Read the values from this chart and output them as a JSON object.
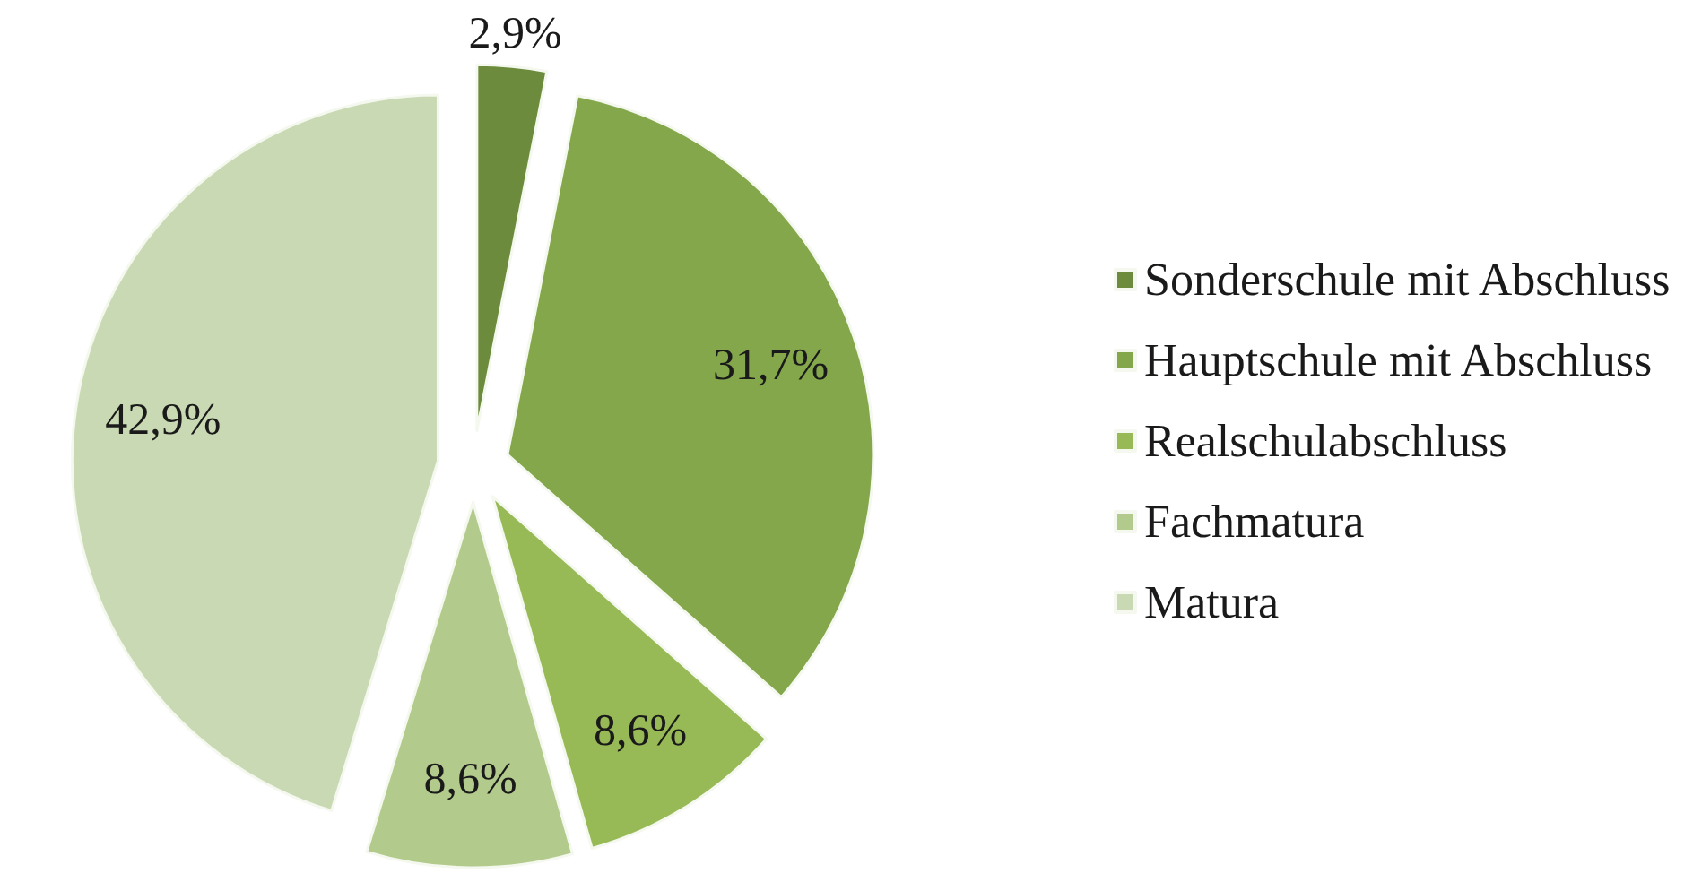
{
  "chart_data": {
    "type": "pie",
    "categories": [
      "Sonderschule mit Abschluss",
      "Hauptschule mit Abschluss",
      "Realschulabschluss",
      "Fachmatura",
      "Matura"
    ],
    "values": [
      2.9,
      31.7,
      8.6,
      8.6,
      42.9
    ],
    "colors": [
      "#6d8b3c",
      "#84a74b",
      "#97ba56",
      "#b3ca8d",
      "#c9d9b3"
    ],
    "value_labels": [
      "2,9%",
      "31,7%",
      "8,6%",
      "8,6%",
      "42,9%"
    ],
    "legend": "right"
  }
}
